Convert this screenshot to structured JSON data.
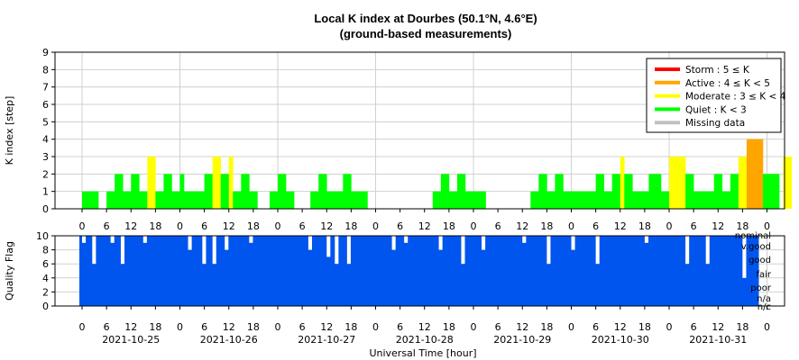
{
  "chart_data": [
    {
      "type": "bar",
      "title": "Local K index at Dourbes (50.1°N, 4.6°E)",
      "subtitle": "(ground-based measurements)",
      "ylabel": "K index [step]",
      "ylim": [
        0,
        9
      ],
      "y_ticks": [
        "0",
        "1",
        "2",
        "3",
        "4",
        "5",
        "6",
        "7",
        "8",
        "9"
      ],
      "x_hour_ticks": [
        "0",
        "6",
        "12",
        "18",
        "0",
        "6",
        "12",
        "18",
        "0",
        "6",
        "12",
        "18",
        "0",
        "6",
        "12",
        "18",
        "0",
        "6",
        "12",
        "18",
        "0",
        "6",
        "12",
        "18",
        "0",
        "6",
        "12",
        "18",
        "0"
      ],
      "grid": true,
      "legend_position": "top-right",
      "legend": [
        {
          "label": "Storm : 5 ≤ K",
          "color": "#ff0000"
        },
        {
          "label": "Active : 4 ≤ K < 5",
          "color": "#ffa500"
        },
        {
          "label": "Moderate : 3 ≤ K < 4",
          "color": "#ffff00"
        },
        {
          "label": "Quiet : K < 3",
          "color": "#00ff00"
        },
        {
          "label": "Missing data",
          "color": "#c0c0c0"
        }
      ],
      "colors": {
        "storm": "#ff0000",
        "active": "#ffa500",
        "moderate": "#ffff00",
        "quiet": "#00ff00",
        "missing": "#c0c0c0"
      },
      "bin_hours": 1,
      "values": [
        1,
        1,
        1,
        1,
        0,
        0,
        1,
        1,
        2,
        2,
        1,
        1,
        2,
        2,
        1,
        1,
        3,
        3,
        1,
        1,
        2,
        2,
        1,
        1,
        2,
        1,
        1,
        1,
        1,
        1,
        2,
        2,
        3,
        3,
        2,
        2,
        3,
        1,
        1,
        2,
        2,
        1,
        1,
        0,
        0,
        0,
        1,
        1,
        2,
        2,
        1,
        1,
        0,
        0,
        0,
        0,
        1,
        1,
        2,
        2,
        1,
        1,
        1,
        1,
        2,
        2,
        1,
        1,
        1,
        1,
        0,
        0,
        0,
        0,
        0,
        0,
        0,
        0,
        0,
        0,
        0,
        0,
        0,
        0,
        0,
        0,
        1,
        1,
        2,
        2,
        1,
        1,
        2,
        2,
        1,
        1,
        1,
        1,
        1,
        0,
        0,
        0,
        0,
        0,
        0,
        0,
        0,
        0,
        0,
        0,
        1,
        1,
        2,
        2,
        1,
        1,
        2,
        2,
        1,
        1,
        1,
        1,
        1,
        1,
        1,
        1,
        2,
        2,
        1,
        1,
        2,
        2,
        3,
        2,
        2,
        1,
        1,
        1,
        1,
        2,
        2,
        2,
        1,
        1,
        3,
        3,
        3,
        3,
        2,
        2,
        1,
        1,
        1,
        1,
        1,
        2,
        2,
        1,
        1,
        2,
        2,
        3,
        3,
        4,
        4,
        4,
        4,
        2,
        2,
        2,
        2,
        0,
        3,
        3
      ]
    },
    {
      "type": "bar",
      "ylabel": "Quality Flag",
      "ylim": [
        0,
        10
      ],
      "y_ticks": [
        "0",
        "2",
        "4",
        "6",
        "8",
        "10"
      ],
      "x_hour_ticks": [
        "0",
        "6",
        "12",
        "18",
        "0",
        "6",
        "12",
        "18",
        "0",
        "6",
        "12",
        "18",
        "0",
        "6",
        "12",
        "18",
        "0",
        "6",
        "12",
        "18",
        "0",
        "6",
        "12",
        "18",
        "0",
        "6",
        "12",
        "18",
        "0"
      ],
      "date_labels": [
        "2021-10-25",
        "2021-10-26",
        "2021-10-27",
        "2021-10-28",
        "2021-10-29",
        "2021-10-30",
        "2021-10-31"
      ],
      "xlabel": "Universal Time [hour]",
      "flag_labels": [
        "nominal",
        "v.good",
        "good",
        "fair",
        "poor",
        "n/a",
        "n/c"
      ],
      "color": "#0055ee",
      "values_dips": [
        {
          "day": 0,
          "hour": 0.0,
          "value": 9
        },
        {
          "day": 0,
          "hour": 2.5,
          "value": 6
        },
        {
          "day": 0,
          "hour": 7.0,
          "value": 9
        },
        {
          "day": 0,
          "hour": 9.5,
          "value": 6
        },
        {
          "day": 0,
          "hour": 15.0,
          "value": 9
        },
        {
          "day": 1,
          "hour": 2.0,
          "value": 8
        },
        {
          "day": 1,
          "hour": 5.5,
          "value": 6
        },
        {
          "day": 1,
          "hour": 8.0,
          "value": 6
        },
        {
          "day": 1,
          "hour": 11.0,
          "value": 8
        },
        {
          "day": 1,
          "hour": 17.0,
          "value": 9
        },
        {
          "day": 2,
          "hour": 7.5,
          "value": 8
        },
        {
          "day": 2,
          "hour": 12.0,
          "value": 7
        },
        {
          "day": 2,
          "hour": 14.0,
          "value": 6
        },
        {
          "day": 2,
          "hour": 17.0,
          "value": 6
        },
        {
          "day": 3,
          "hour": 4.0,
          "value": 8
        },
        {
          "day": 3,
          "hour": 7.0,
          "value": 9
        },
        {
          "day": 3,
          "hour": 15.5,
          "value": 8
        },
        {
          "day": 3,
          "hour": 21.0,
          "value": 6
        },
        {
          "day": 4,
          "hour": 2.0,
          "value": 8
        },
        {
          "day": 4,
          "hour": 12.0,
          "value": 9
        },
        {
          "day": 4,
          "hour": 18.0,
          "value": 6
        },
        {
          "day": 5,
          "hour": 0.0,
          "value": 8
        },
        {
          "day": 5,
          "hour": 6.0,
          "value": 6
        },
        {
          "day": 5,
          "hour": 18.0,
          "value": 9
        },
        {
          "day": 6,
          "hour": 4.0,
          "value": 6
        },
        {
          "day": 6,
          "hour": 9.0,
          "value": 6
        },
        {
          "day": 6,
          "hour": 18.0,
          "value": 4
        }
      ]
    }
  ]
}
